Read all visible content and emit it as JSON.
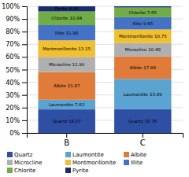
{
  "chart_data": {
    "type": "bar",
    "stacked": true,
    "categories": [
      "B",
      "C"
    ],
    "series": [
      {
        "name": "Quartz",
        "color": "#2e4fa3",
        "values": [
          18.57,
          18.76
        ],
        "value_labels": [
          "Quartz 18.57",
          "Quartz 18.76"
        ]
      },
      {
        "name": "Laumontite",
        "color": "#5ba3d0",
        "values": [
          7.63,
          23.89
        ],
        "value_labels": [
          "Laumontite 7.63",
          "Laumontite 23.89"
        ]
      },
      {
        "name": "Albite",
        "color": "#e07b39",
        "values": [
          21.87,
          17.84
        ],
        "value_labels": [
          "Albite 21.87",
          "Albite 17.84"
        ]
      },
      {
        "name": "Microcline",
        "color": "#b0b0b0",
        "values": [
          11.9,
          10.48
        ],
        "value_labels": [
          "Microcline 11.90",
          "Microcline 10.48"
        ]
      },
      {
        "name": "Montmorillonite",
        "color": "#f0c030",
        "values": [
          13.15,
          10.75
        ],
        "value_labels": [
          "Montmorillonite 13.15",
          "Montmorillonite 10.75"
        ]
      },
      {
        "name": "Illite",
        "color": "#4472c4",
        "values": [
          11.98,
          9.65
        ],
        "value_labels": [
          "Illite 11.98",
          "Illite 9.65"
        ]
      },
      {
        "name": "Chlorite",
        "color": "#70ad47",
        "values": [
          10.84,
          7.65
        ],
        "value_labels": [
          "Chlorite 10.84",
          "Chlorite 7.65"
        ]
      },
      {
        "name": "Pyrite",
        "color": "#1c2d6e",
        "values": [
          4.06,
          0.98
        ],
        "value_labels": [
          "Pyrite 4.06",
          null
        ]
      }
    ],
    "ylim": [
      0,
      100
    ],
    "yticks": [
      {
        "value": 0,
        "label": "0%"
      },
      {
        "value": 10,
        "label": "10%"
      },
      {
        "value": 20,
        "label": "20%"
      },
      {
        "value": 30,
        "label": "30%"
      },
      {
        "value": 40,
        "label": "40%"
      },
      {
        "value": 50,
        "label": "50%"
      },
      {
        "value": 60,
        "label": "60%"
      },
      {
        "value": 70,
        "label": "70%"
      },
      {
        "value": 80,
        "label": "80%"
      },
      {
        "value": 90,
        "label": "90%"
      },
      {
        "value": 100,
        "label": "100%"
      }
    ],
    "grid": true,
    "legend": "bottom"
  }
}
